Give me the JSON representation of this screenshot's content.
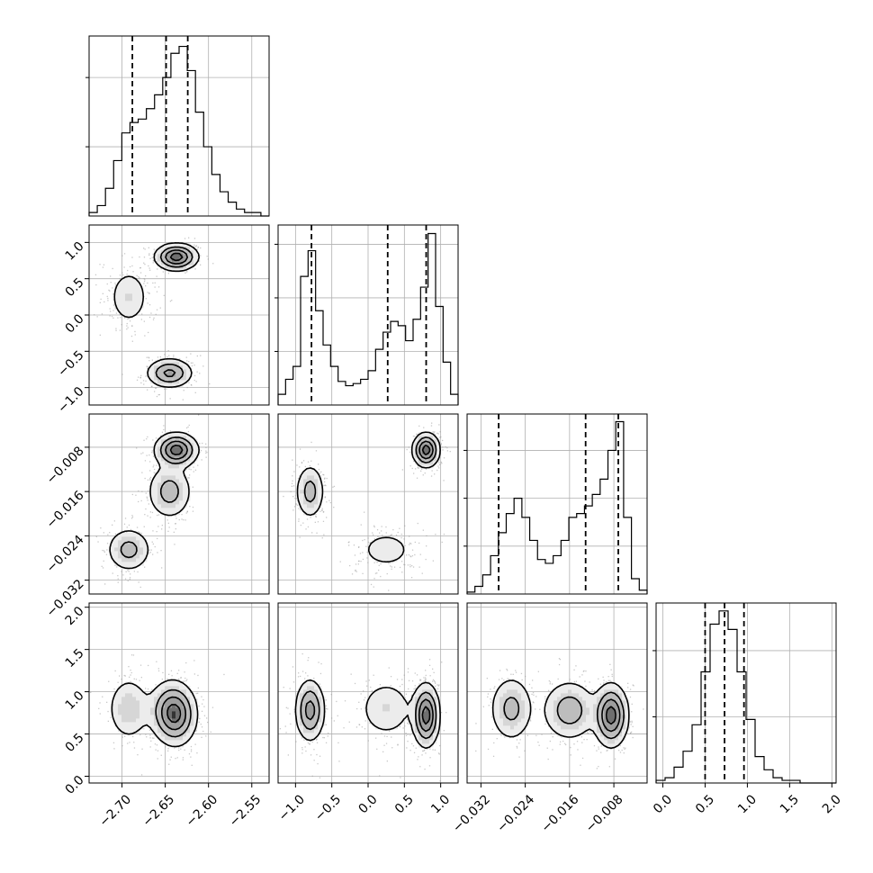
{
  "chart_data": {
    "type": "corner",
    "parameters": 4,
    "colors": {
      "ink": "#000000",
      "grid": "#b0b0b0",
      "point": "#9a9a9a"
    },
    "ranges": [
      {
        "min": -2.738,
        "max": -2.53
      },
      {
        "min": -1.24,
        "max": 1.24
      },
      {
        "min": -0.0345,
        "max": -0.002
      },
      {
        "min": -0.08,
        "max": 2.05
      }
    ],
    "ticks": [
      {
        "values": [
          -2.7,
          -2.65,
          -2.6,
          -2.55
        ],
        "labels": [
          "−2.70",
          "−2.65",
          "−2.60",
          "−2.55"
        ]
      },
      {
        "values": [
          -1.0,
          -0.5,
          0.0,
          0.5,
          1.0
        ],
        "labels": [
          "−1.0",
          "−0.5",
          "0.0",
          "0.5",
          "1.0"
        ]
      },
      {
        "values": [
          -0.032,
          -0.024,
          -0.016,
          -0.008
        ],
        "labels": [
          "−0.032",
          "−0.024",
          "−0.016",
          "−0.008"
        ]
      },
      {
        "values": [
          0.0,
          0.5,
          1.0,
          1.5,
          2.0
        ],
        "labels": [
          "0.0",
          "0.5",
          "1.0",
          "1.5",
          "2.0"
        ]
      }
    ],
    "histograms": [
      {
        "counts": [
          1,
          3,
          8,
          16,
          24,
          27,
          28,
          31,
          35,
          40,
          47,
          49,
          42,
          30,
          20,
          12,
          7,
          4,
          2,
          1,
          1,
          0
        ],
        "quantiles": [
          -2.688,
          -2.649,
          -2.624
        ],
        "ymax": 52
      },
      {
        "counts": [
          5,
          12,
          18,
          60,
          72,
          44,
          28,
          18,
          11,
          9,
          10,
          12,
          16,
          26,
          34,
          39,
          37,
          30,
          40,
          55,
          80,
          46,
          20,
          5
        ],
        "quantiles": [
          -0.78,
          0.27,
          0.8
        ],
        "ymax": 84
      },
      {
        "counts": [
          1,
          4,
          10,
          20,
          32,
          42,
          50,
          40,
          28,
          18,
          16,
          20,
          28,
          40,
          42,
          46,
          52,
          60,
          75,
          90,
          40,
          8,
          2
        ],
        "quantiles": [
          -0.0288,
          -0.0131,
          -0.0072
        ],
        "ymax": 94
      },
      {
        "counts": [
          1,
          2,
          6,
          12,
          22,
          42,
          60,
          65,
          58,
          42,
          24,
          10,
          5,
          2,
          1,
          1,
          0,
          0,
          0,
          0
        ],
        "quantiles": [
          0.5,
          0.73,
          0.96
        ],
        "ymax": 68
      }
    ],
    "modes": [
      {
        "means": [
          -2.637,
          0.8,
          -0.0085,
          0.72
        ],
        "sds": [
          0.012,
          0.09,
          0.0015,
          0.18
        ],
        "weight": 0.42
      },
      {
        "means": [
          -2.645,
          -0.8,
          -0.016,
          0.78
        ],
        "sds": [
          0.013,
          0.1,
          0.0025,
          0.18
        ],
        "weight": 0.33
      },
      {
        "means": [
          -2.692,
          0.25,
          -0.0265,
          0.8
        ],
        "sds": [
          0.013,
          0.22,
          0.002,
          0.2
        ],
        "weight": 0.25
      }
    ]
  }
}
